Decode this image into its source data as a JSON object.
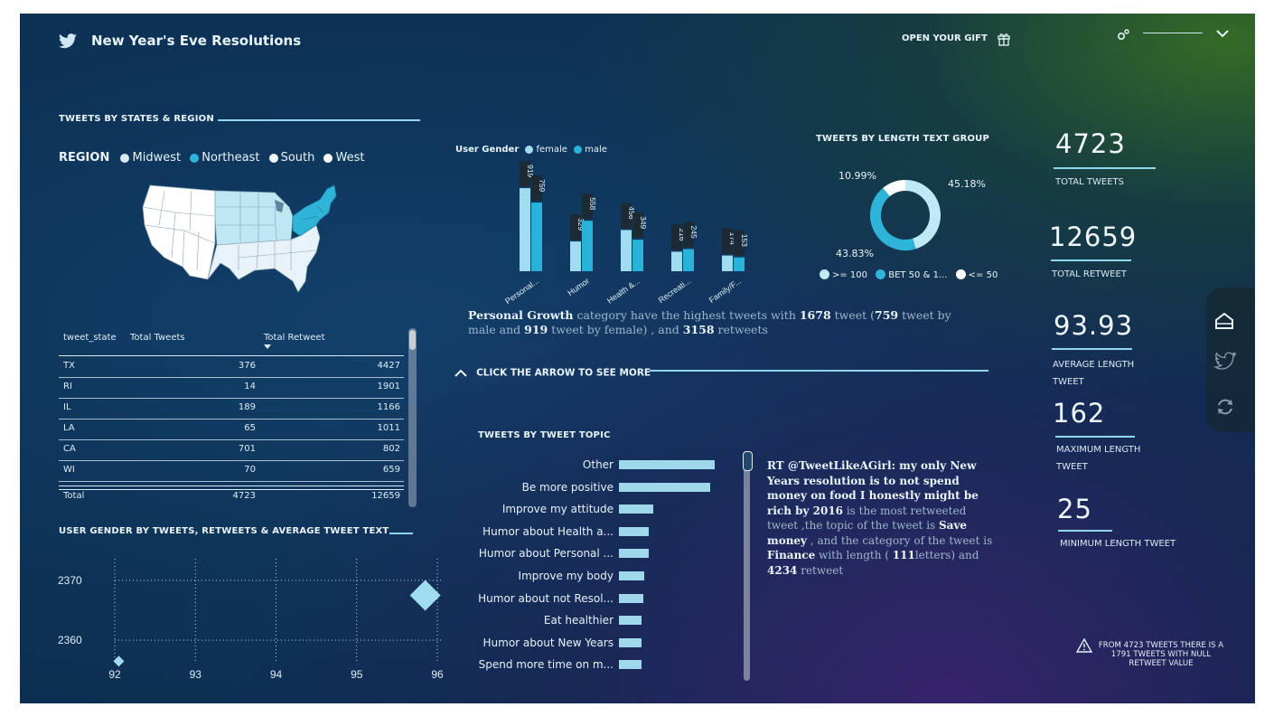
{
  "header": {
    "title": "New Year's Eve Resolutions",
    "gift_label": "OPEN YOUR GIFT"
  },
  "map_section": {
    "title": "TWEETS  BY STATES & REGION",
    "region_label": "REGION",
    "legend": [
      {
        "name": "Midwest",
        "color": "#dbeaf3"
      },
      {
        "name": "Northeast",
        "color": "#2fb3d7"
      },
      {
        "name": "South",
        "color": "#f2f7fb"
      },
      {
        "name": "West",
        "color": "#ffffff"
      }
    ]
  },
  "state_table": {
    "headers": [
      "tweet_state",
      "Total Tweets",
      "Total Retweet"
    ],
    "rows": [
      [
        "TX",
        "376",
        "4427"
      ],
      [
        "RI",
        "14",
        "1901"
      ],
      [
        "IL",
        "189",
        "1166"
      ],
      [
        "LA",
        "65",
        "1011"
      ],
      [
        "CA",
        "701",
        "802"
      ],
      [
        "WI",
        "70",
        "659"
      ]
    ],
    "total": [
      "Total",
      "4723",
      "12659"
    ]
  },
  "gender_chart": {
    "legend_title": "User Gender",
    "legend": [
      {
        "name": "female",
        "color": "#9fdcef"
      },
      {
        "name": "male",
        "color": "#27b3d9"
      }
    ]
  },
  "length_section": {
    "title": "TWEETS  BY LENGTH TEXT GROUP",
    "labels": [
      "10.99%",
      "45.18%",
      "43.83%"
    ],
    "legend": [
      {
        "name": ">= 100",
        "color": "#bfe9f6"
      },
      {
        "name": "BET 50 & 1...",
        "color": "#2eb4d9"
      },
      {
        "name": "<= 50",
        "color": "#ffffff"
      }
    ]
  },
  "insight": {
    "parts": [
      {
        "t": "Personal Growth",
        "b": true
      },
      {
        "t": " category have the highest tweets with ",
        "b": false
      },
      {
        "t": "1678",
        "b": true
      },
      {
        "t": " tweet (",
        "b": false
      },
      {
        "t": "759",
        "b": true
      },
      {
        "t": " tweet by male and ",
        "b": false
      },
      {
        "t": "919",
        "b": true
      },
      {
        "t": " tweet by female) , and ",
        "b": false
      },
      {
        "t": "3158",
        "b": true
      },
      {
        "t": " retweets",
        "b": false
      }
    ]
  },
  "arrow_cta": "CLICK THE ARROW TO SEE MORE",
  "scatter_section": {
    "title": "USER GENDER BY TWEETS, RETWEETS & AVERAGE TWEET TEXT"
  },
  "topic_section": {
    "title": "TWEETS BY TWEET TOPIC",
    "items": [
      {
        "label": "Other",
        "value": 1.0
      },
      {
        "label": "Be more positive",
        "value": 0.95
      },
      {
        "label": "Improve my attitude",
        "value": 0.36
      },
      {
        "label": "Humor about Health a...",
        "value": 0.31
      },
      {
        "label": "Humor about Personal ...",
        "value": 0.31
      },
      {
        "label": "Improve my body",
        "value": 0.26
      },
      {
        "label": "Humor about not Resol...",
        "value": 0.25
      },
      {
        "label": "Eat healthier",
        "value": 0.24
      },
      {
        "label": "Humor about New Years",
        "value": 0.24
      },
      {
        "label": "Spend more time on m...",
        "value": 0.24
      }
    ]
  },
  "retweet_text": {
    "parts": [
      {
        "t": "RT @TweetLikeAGirl: my only New Years resolution is to not spend money on food I honestly might be rich by 2016",
        "b": true
      },
      {
        "t": " is the most retweeted tweet ,the topic of the tweet is ",
        "b": false
      },
      {
        "t": "Save money",
        "b": true
      },
      {
        "t": " , and the category of the tweet is ",
        "b": false
      },
      {
        "t": "Finance",
        "b": true
      },
      {
        "t": " with length ( ",
        "b": false
      },
      {
        "t": "111",
        "b": true
      },
      {
        "t": "letters) and ",
        "b": false
      },
      {
        "t": "4234",
        "b": true
      },
      {
        "t": " retweet",
        "b": false
      }
    ]
  },
  "kpis": [
    {
      "value": "4723",
      "label": "TOTAL TWEETS"
    },
    {
      "value": "12659",
      "label": "TOTAL RETWEET"
    },
    {
      "value": "93.93",
      "label": "AVERAGE LENGTH TWEET"
    },
    {
      "value": "162",
      "label": "MAXIMUM LENGTH TWEET"
    },
    {
      "value": "25",
      "label": "MINIMUM LENGTH TWEET"
    }
  ],
  "warning": "FROM 4723 TWEETS THERE IS A 1791 TWEETS WITH NULL RETWEET VALUE",
  "side_nav": [
    "home-icon",
    "twitter-icon",
    "refresh-icon"
  ],
  "chart_data": [
    {
      "type": "bar",
      "title": "",
      "legend_title": "User Gender",
      "categories": [
        "Personal...",
        "Humor",
        "Health &...",
        "Recreati...",
        "Family/F..."
      ],
      "series": [
        {
          "name": "female",
          "color": "#9fdcef",
          "values": [
            919,
            329,
            456,
            216,
            174
          ]
        },
        {
          "name": "male",
          "color": "#27b3d9",
          "values": [
            759,
            558,
            349,
            245,
            153
          ]
        }
      ],
      "ylim": [
        0,
        1000
      ]
    },
    {
      "type": "pie",
      "title": "TWEETS  BY LENGTH TEXT GROUP",
      "slices": [
        {
          "name": ">= 100",
          "value": 45.18,
          "color": "#bfe9f6"
        },
        {
          "name": "BET 50 & 1...",
          "value": 43.83,
          "color": "#2eb4d9"
        },
        {
          "name": "<= 50",
          "value": 10.99,
          "color": "#ffffff"
        }
      ]
    },
    {
      "type": "scatter",
      "title": "USER GENDER BY TWEETS, RETWEETS & AVERAGE TWEET TEXT",
      "x_ticks": [
        "92",
        "93",
        "94",
        "95",
        "96"
      ],
      "y_ticks": [
        "2370",
        "2360"
      ],
      "xlim": [
        92,
        96
      ],
      "ylim": [
        2357,
        2373
      ],
      "points": [
        {
          "x": 92.05,
          "y": 2356.5
        },
        {
          "x": 95.85,
          "y": 2367.5
        }
      ]
    },
    {
      "type": "bar",
      "title": "TWEETS BY TWEET TOPIC",
      "categories": [
        "Other",
        "Be more positive",
        "Improve my attitude",
        "Humor about Health a...",
        "Humor about Personal ...",
        "Improve my body",
        "Humor about not Resol...",
        "Eat healthier",
        "Humor about New Years",
        "Spend more time on m..."
      ],
      "values": [
        1.0,
        0.95,
        0.36,
        0.31,
        0.31,
        0.26,
        0.25,
        0.24,
        0.24,
        0.24
      ]
    }
  ]
}
